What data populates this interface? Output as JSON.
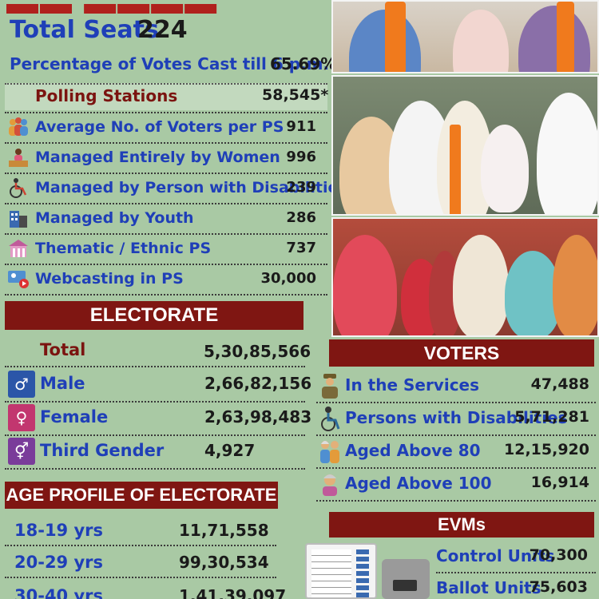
{
  "header": {
    "seats_label": "Total Seats",
    "seats_value": "224",
    "pct_label": "Percentage of Votes Cast till 6 p.m.",
    "pct_value": "65.69%"
  },
  "polling": {
    "label": "Polling Stations",
    "value": "58,545*",
    "rows": [
      {
        "label": "Average No. of Voters per PS",
        "value": "911",
        "icon": "people-group-icon"
      },
      {
        "label": "Managed Entirely by Women",
        "value": "996",
        "icon": "woman-desk-icon"
      },
      {
        "label": "Managed by Person with Disabilities",
        "value": "239",
        "icon": "wheelchair-icon"
      },
      {
        "label": "Managed by Youth",
        "value": "286",
        "icon": "building-youth-icon"
      },
      {
        "label": "Thematic / Ethnic PS",
        "value": "737",
        "icon": "temple-icon"
      },
      {
        "label": "Webcasting in PS",
        "value": "30,000",
        "icon": "webcast-icon"
      }
    ]
  },
  "electorate": {
    "title": "ELECTORATE",
    "total_label": "Total",
    "total_value": "5,30,85,566",
    "rows": [
      {
        "label": "Male",
        "value": "2,66,82,156",
        "icon": "male-icon",
        "color": "#2b56a8"
      },
      {
        "label": "Female",
        "value": "2,63,98,483",
        "icon": "female-icon",
        "color": "#c2366f"
      },
      {
        "label": "Third Gender",
        "value": "4,927",
        "icon": "third-gender-icon",
        "color": "#7a3c9a"
      }
    ]
  },
  "age_profile": {
    "title": "AGE PROFILE OF ELECTORATE",
    "rows": [
      {
        "label": "18-19 yrs",
        "value": "11,71,558"
      },
      {
        "label": "20-29 yrs",
        "value": "99,30,534"
      },
      {
        "label": "30-40 yrs",
        "value": "1,41,39,097"
      }
    ]
  },
  "voters": {
    "title": "VOTERS",
    "rows": [
      {
        "label": "In the Services",
        "value": "47,488",
        "icon": "soldier-icon"
      },
      {
        "label": "Persons with Disabilities",
        "value": "5,71,281",
        "icon": "wheelchair-icon"
      },
      {
        "label": "Aged Above 80",
        "value": "12,15,920",
        "icon": "elderly-couple-icon"
      },
      {
        "label": "Aged Above 100",
        "value": "16,914",
        "icon": "elderly-person-icon"
      }
    ]
  },
  "evms": {
    "title": "EVMs",
    "rows": [
      {
        "label": "Control Units",
        "value": "70,300"
      },
      {
        "label": "Ballot Units",
        "value": "75,603"
      }
    ]
  },
  "colors": {
    "background": "#a9c9a4",
    "banner": "#7f1612",
    "label_blue": "#1f3fb8",
    "accent_maroon": "#7b1410"
  }
}
